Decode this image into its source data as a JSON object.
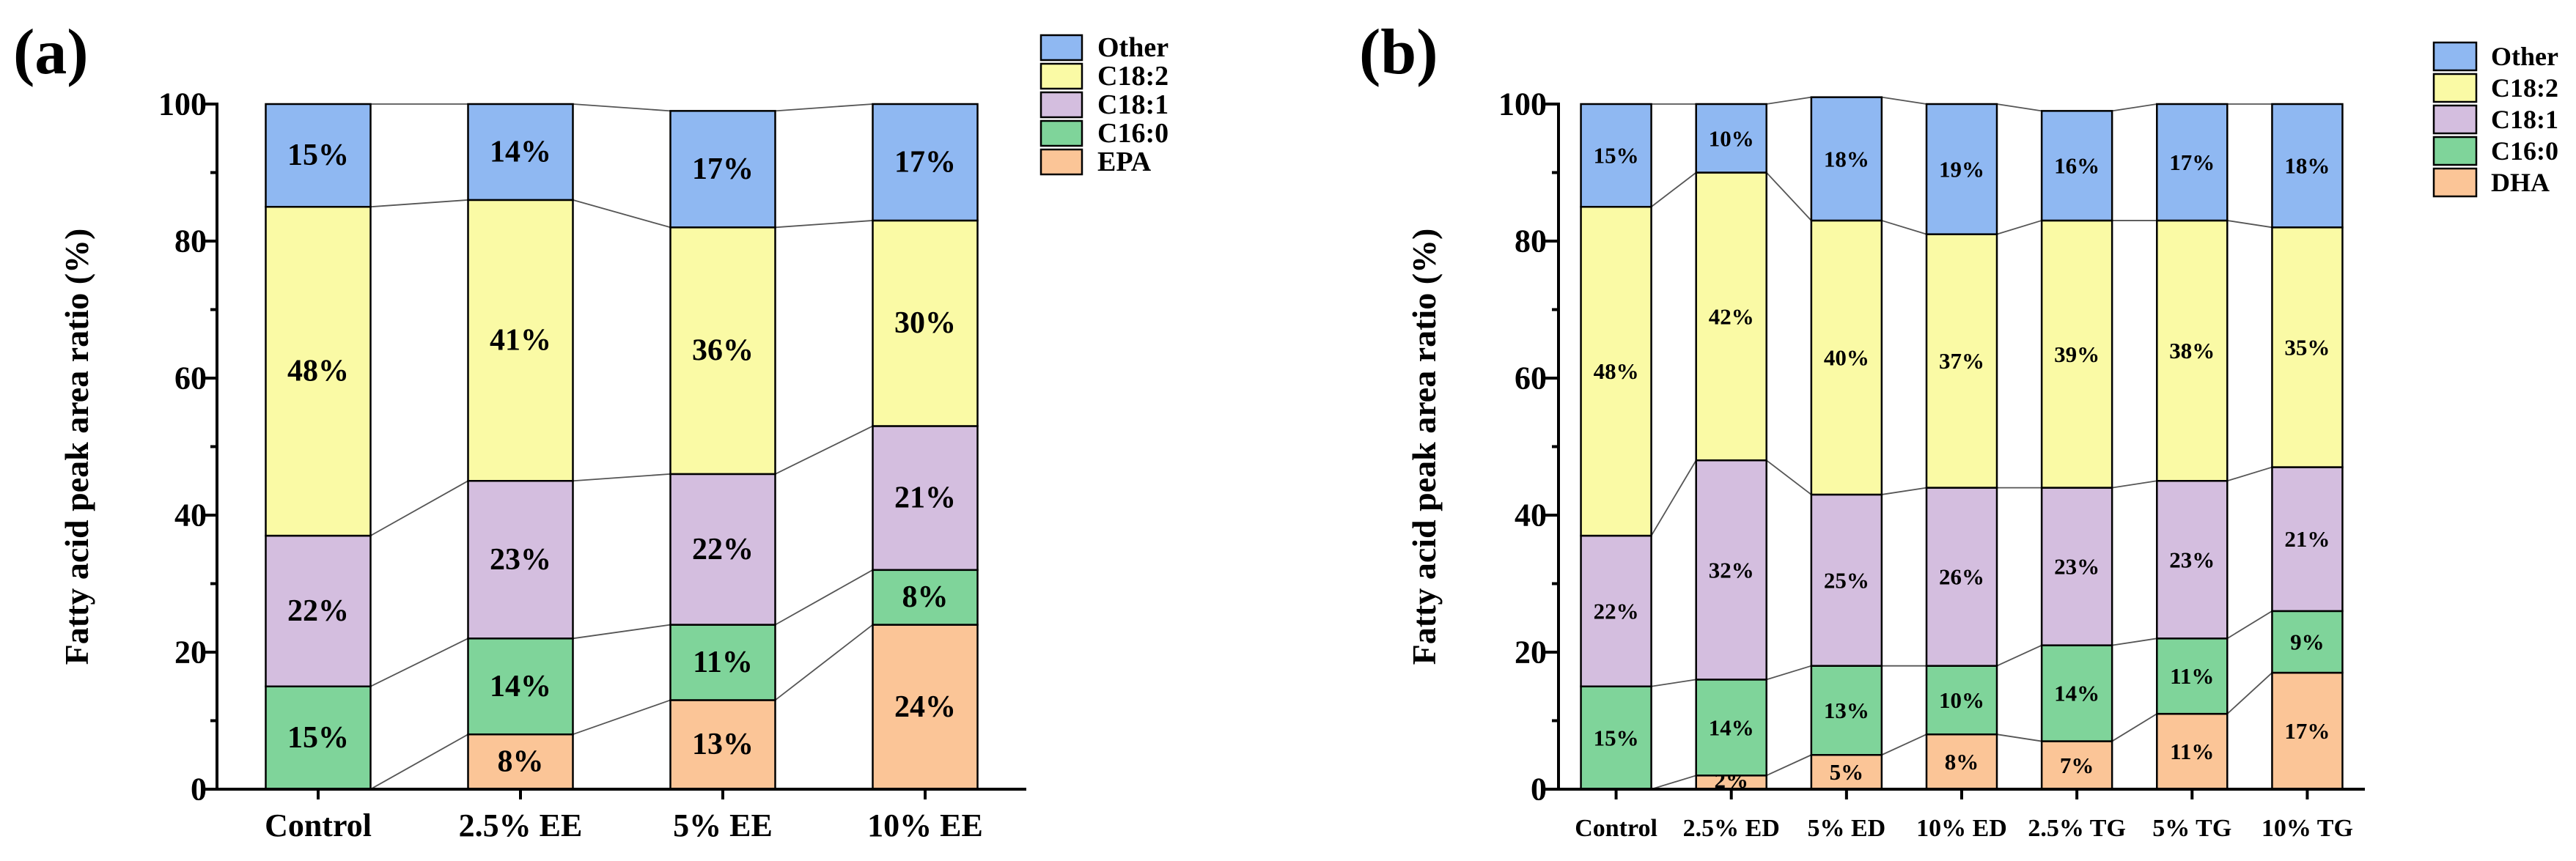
{
  "colors": {
    "Other": "#8FB8F2",
    "C18:2": "#FAFAA5",
    "C18:1": "#D4BEDF",
    "C16:0": "#7FD49A",
    "EPA": "#FBC597",
    "DHA": "#FBC597"
  },
  "chart_data": [
    {
      "type": "bar",
      "stacked": true,
      "panel_label": "(a)",
      "title": "",
      "xlabel": "",
      "ylabel": "Fatty acid peak area ratio (%)",
      "ylim": [
        0,
        100
      ],
      "yticks": [
        "0",
        "20",
        "40",
        "60",
        "80",
        "100"
      ],
      "categories": [
        "Control",
        "2.5% EE",
        "5% EE",
        "10% EE"
      ],
      "series": [
        {
          "name": "EPA",
          "values": [
            0,
            8,
            13,
            24
          ],
          "labels": [
            "",
            "8%",
            "13%",
            "24%"
          ]
        },
        {
          "name": "C16:0",
          "values": [
            15,
            14,
            11,
            8
          ],
          "labels": [
            "15%",
            "14%",
            "11%",
            "8%"
          ]
        },
        {
          "name": "C18:1",
          "values": [
            22,
            23,
            22,
            21
          ],
          "labels": [
            "22%",
            "23%",
            "22%",
            "21%"
          ]
        },
        {
          "name": "C18:2",
          "values": [
            48,
            41,
            36,
            30
          ],
          "labels": [
            "48%",
            "41%",
            "36%",
            "30%"
          ]
        },
        {
          "name": "Other",
          "values": [
            15,
            14,
            17,
            17
          ],
          "labels": [
            "15%",
            "14%",
            "17%",
            "17%"
          ]
        }
      ],
      "legend": [
        "Other",
        "C18:2",
        "C18:1",
        "C16:0",
        "EPA"
      ],
      "legend_position": "top-right"
    },
    {
      "type": "bar",
      "stacked": true,
      "panel_label": "(b)",
      "title": "",
      "xlabel": "",
      "ylabel": "Fatty acid peak area ratio (%)",
      "ylim": [
        0,
        100
      ],
      "yticks": [
        "0",
        "20",
        "40",
        "60",
        "80",
        "100"
      ],
      "categories": [
        "Control",
        "2.5% ED",
        "5% ED",
        "10% ED",
        "2.5% TG",
        "5% TG",
        "10% TG"
      ],
      "series": [
        {
          "name": "DHA",
          "values": [
            0,
            2,
            5,
            8,
            7,
            11,
            17
          ],
          "labels": [
            "",
            "2%",
            "5%",
            "8%",
            "7%",
            "11%",
            "17%"
          ]
        },
        {
          "name": "C16:0",
          "values": [
            15,
            14,
            13,
            10,
            14,
            11,
            9
          ],
          "labels": [
            "15%",
            "14%",
            "13%",
            "10%",
            "14%",
            "11%",
            "9%"
          ]
        },
        {
          "name": "C18:1",
          "values": [
            22,
            32,
            25,
            26,
            23,
            23,
            21
          ],
          "labels": [
            "22%",
            "32%",
            "25%",
            "26%",
            "23%",
            "23%",
            "21%"
          ]
        },
        {
          "name": "C18:2",
          "values": [
            48,
            42,
            40,
            37,
            39,
            38,
            35
          ],
          "labels": [
            "48%",
            "42%",
            "40%",
            "37%",
            "39%",
            "38%",
            "35%"
          ]
        },
        {
          "name": "Other",
          "values": [
            15,
            10,
            18,
            19,
            16,
            17,
            18
          ],
          "labels": [
            "15%",
            "10%",
            "18%",
            "19%",
            "16%",
            "17%",
            "18%"
          ]
        }
      ],
      "legend": [
        "Other",
        "C18:2",
        "C18:1",
        "C16:0",
        "DHA"
      ],
      "legend_position": "top-right"
    }
  ]
}
